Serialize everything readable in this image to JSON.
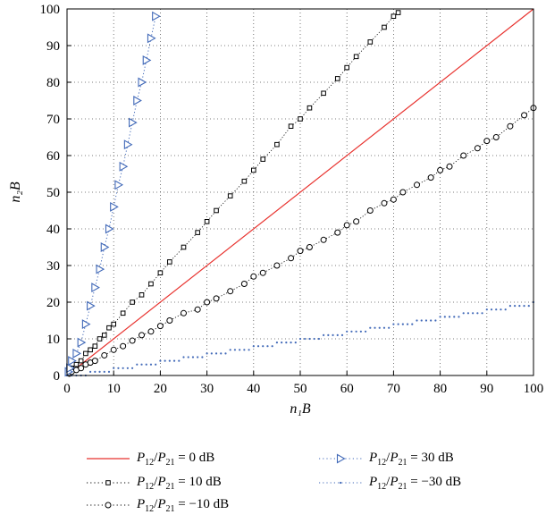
{
  "chart_data": {
    "type": "scatter",
    "xlabel": "n₁B",
    "ylabel": "n₂B",
    "xlim": [
      0,
      100
    ],
    "ylim": [
      0,
      100
    ],
    "xticks": [
      0,
      10,
      20,
      30,
      40,
      50,
      60,
      70,
      80,
      90,
      100
    ],
    "yticks": [
      0,
      10,
      20,
      30,
      40,
      50,
      60,
      70,
      80,
      90,
      100
    ],
    "grid": true,
    "grid_style": "dotted",
    "legend_position": "below",
    "series": [
      {
        "name": "P12/P21 = 0 dB",
        "label_parts": [
          "P",
          "12",
          "P",
          "21",
          " = 0 dB"
        ],
        "color": "#e8322e",
        "style": "line",
        "x": [
          0,
          100
        ],
        "y": [
          0,
          100
        ]
      },
      {
        "name": "P12/P21 = 10 dB",
        "label_parts": [
          "P",
          "12",
          "P",
          "21",
          " = 10 dB"
        ],
        "color": "#000000",
        "style": "square",
        "x": [
          0.5,
          1,
          2,
          3,
          4,
          5,
          6,
          7,
          8,
          9,
          10,
          12,
          14,
          16,
          18,
          20,
          22,
          25,
          28,
          30,
          32,
          35,
          38,
          40,
          42,
          45,
          48,
          50,
          52,
          55,
          58,
          60,
          62,
          65,
          68,
          70,
          71
        ],
        "y": [
          1,
          2,
          3,
          4,
          6,
          7,
          8,
          10,
          11,
          13,
          14,
          17,
          20,
          22,
          25,
          28,
          31,
          35,
          39,
          42,
          45,
          49,
          53,
          56,
          59,
          63,
          68,
          70,
          73,
          77,
          81,
          84,
          87,
          91,
          95,
          98,
          99
        ]
      },
      {
        "name": "P12/P21 = −10 dB",
        "label_parts": [
          "P",
          "12",
          "P",
          "21",
          " = −10 dB"
        ],
        "color": "#000000",
        "style": "circle",
        "x": [
          0.5,
          1,
          2,
          3,
          4,
          5,
          6,
          8,
          10,
          12,
          14,
          16,
          18,
          20,
          22,
          25,
          28,
          30,
          32,
          35,
          38,
          40,
          42,
          45,
          48,
          50,
          52,
          55,
          58,
          60,
          62,
          65,
          68,
          70,
          72,
          75,
          78,
          80,
          82,
          85,
          88,
          90,
          92,
          95,
          98,
          100
        ],
        "y": [
          0.5,
          1,
          1.5,
          2,
          3,
          3.5,
          4,
          5.5,
          7,
          8,
          9.5,
          11,
          12,
          13.5,
          15,
          17,
          18,
          20,
          21,
          23,
          25,
          27,
          28,
          30,
          32,
          34,
          35,
          37,
          39,
          41,
          42,
          45,
          47,
          48,
          50,
          52,
          54,
          56,
          57,
          60,
          62,
          64,
          65,
          68,
          71,
          73
        ]
      },
      {
        "name": "P12/P21 = 30 dB",
        "label_parts": [
          "P",
          "12",
          "P",
          "21",
          " = 30 dB"
        ],
        "color": "#4169b8",
        "style": "triangle",
        "x": [
          0.3,
          0.6,
          1,
          2,
          3,
          4,
          5,
          6,
          7,
          8,
          9,
          10,
          11,
          12,
          13,
          14,
          15,
          16,
          17,
          18,
          19
        ],
        "y": [
          1,
          2,
          4,
          6,
          9,
          14,
          19,
          24,
          29,
          35,
          40,
          46,
          52,
          57,
          63,
          69,
          75,
          80,
          86,
          92,
          98
        ]
      },
      {
        "name": "P12/P21 = −30 dB",
        "label_parts": [
          "P",
          "12",
          "P",
          "21",
          " = −30 dB"
        ],
        "color": "#4169b8",
        "style": "dot",
        "steps_max_x": 100,
        "step_width": 5,
        "y_at_end": 20
      }
    ]
  }
}
